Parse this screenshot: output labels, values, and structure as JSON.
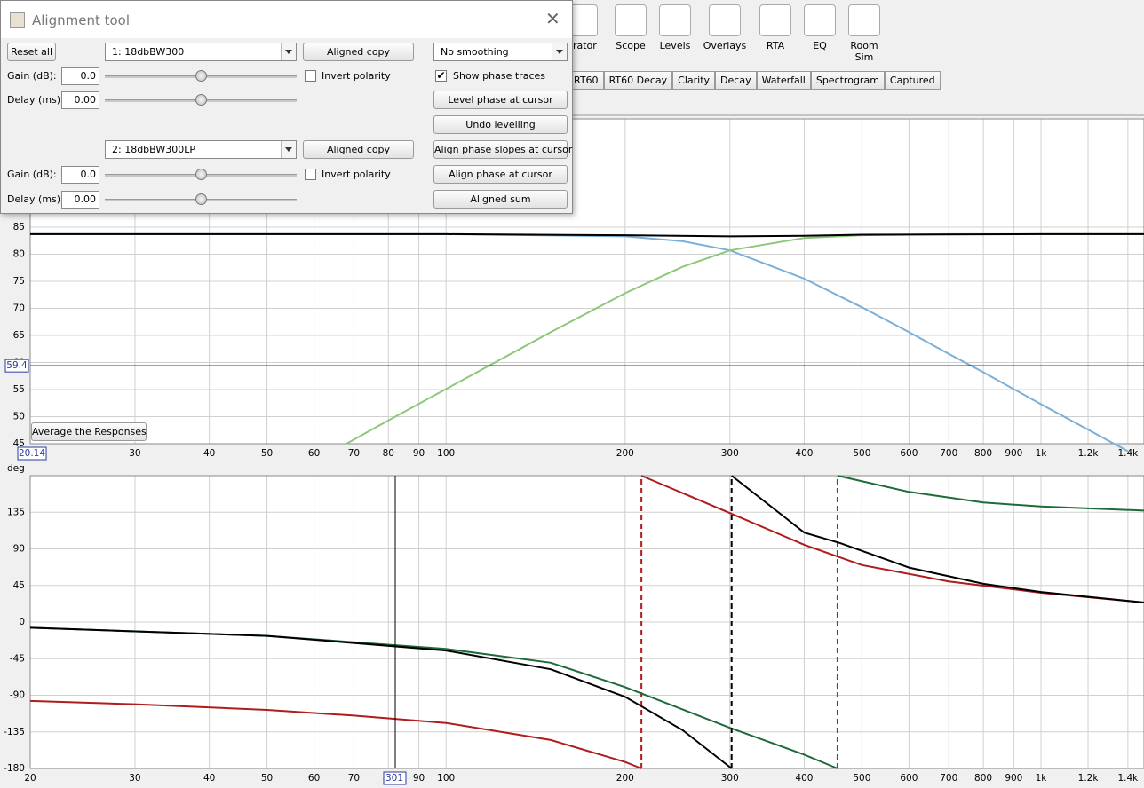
{
  "dialog": {
    "title": "Alignment tool",
    "reset_all": "Reset all",
    "smoothing": "No  smoothing",
    "show_phase_traces": "Show phase traces",
    "actions": [
      "Level phase at cursor",
      "Undo levelling",
      "Align phase slopes at cursor",
      "Align phase at cursor",
      "Aligned sum"
    ],
    "channels": [
      {
        "measurement": "1: 18dbBW300",
        "copy": "Aligned copy",
        "gain_label": "Gain (dB):",
        "gain": "0.0",
        "invert": "Invert polarity",
        "delay_label": "Delay (ms):",
        "delay": "0.00"
      },
      {
        "measurement": "2: 18dbBW300LP",
        "copy": "Aligned copy",
        "gain_label": "Gain (dB):",
        "gain": "0.0",
        "invert": "Invert polarity",
        "delay_label": "Delay (ms):",
        "delay": "0.00"
      }
    ]
  },
  "toolbar": [
    "erator",
    "Scope",
    "Levels",
    "Overlays",
    "RTA",
    "EQ",
    "Room Sim"
  ],
  "tabs": [
    "RT60",
    "RT60 Decay",
    "Clarity",
    "Decay",
    "Waterfall",
    "Spectrogram",
    "Captured"
  ],
  "average_button": "Average the Responses",
  "spl_graph": {
    "xlim": [
      20,
      1490
    ],
    "ylim": [
      45,
      105
    ],
    "log_x": true,
    "xticks": [
      30,
      40,
      50,
      60,
      70,
      80,
      90,
      100,
      200,
      300,
      400,
      500,
      600,
      700,
      800,
      900,
      {
        "value": 1000,
        "label": "1k"
      },
      {
        "value": 1200,
        "label": "1.2k"
      },
      {
        "value": 1400,
        "label": "1.4k"
      }
    ],
    "yticks": [
      45,
      50,
      55,
      60,
      65,
      70,
      75,
      80,
      85
    ],
    "cursor_y": 59.4,
    "cursor_x": 20.14,
    "series": [
      {
        "color": "#7ab0d8",
        "x": [
          20,
          100,
          200,
          250,
          300,
          400,
          500,
          600,
          700,
          800,
          1000,
          1200,
          1400
        ],
        "values": [
          83.7,
          83.7,
          83.3,
          82.4,
          80.7,
          75.5,
          70.2,
          65.6,
          61.6,
          58.2,
          52.3,
          47.6,
          43.6
        ]
      },
      {
        "color": "#8cc87a",
        "x": [
          68,
          80,
          100,
          150,
          200,
          250,
          300,
          400,
          500,
          700,
          1000,
          1490
        ],
        "values": [
          45,
          49.3,
          55.1,
          65.6,
          72.8,
          77.7,
          80.7,
          83,
          83.5,
          83.7,
          83.7,
          83.7
        ]
      },
      {
        "color": "#000000",
        "x": [
          20,
          100,
          200,
          300,
          400,
          500,
          1000,
          1490
        ],
        "values": [
          83.7,
          83.7,
          83.5,
          83.3,
          83.4,
          83.6,
          83.7,
          83.7
        ]
      }
    ]
  },
  "phase_graph": {
    "y_unit": "deg",
    "xlim": [
      20,
      1490
    ],
    "ylim": [
      -180,
      180
    ],
    "log_x": true,
    "xticks": [
      20,
      30,
      40,
      50,
      60,
      70,
      80,
      90,
      100,
      200,
      300,
      400,
      500,
      600,
      700,
      800,
      900,
      {
        "value": 1000,
        "label": "1k"
      },
      {
        "value": 1200,
        "label": "1.2k"
      },
      {
        "value": 1400,
        "label": "1.4k"
      }
    ],
    "yticks": [
      -180,
      -135,
      -90,
      -45,
      0,
      45,
      90,
      135
    ],
    "cursor_label": "301",
    "series": [
      {
        "color": "#b01c1c",
        "x": [
          20,
          30,
          50,
          70,
          100,
          150,
          200,
          213,
          null,
          213,
          300,
          400,
          500,
          700,
          1000,
          1490
        ],
        "values": [
          -97,
          -101,
          -108,
          -115,
          -124,
          -145,
          -172,
          -180,
          null,
          180,
          134,
          95,
          70,
          50,
          36,
          24
        ]
      },
      {
        "color": "#1e6b3a",
        "x": [
          20,
          50,
          100,
          150,
          200,
          300,
          400,
          455,
          null,
          455,
          600,
          800,
          1000,
          1490
        ],
        "values": [
          -7,
          -17,
          -33,
          -50,
          -80,
          -130,
          -163,
          -180,
          null,
          180,
          160,
          147,
          142,
          137
        ]
      },
      {
        "color": "#000000",
        "x": [
          20,
          50,
          100,
          150,
          200,
          250,
          302,
          null,
          302,
          400,
          460,
          600,
          800,
          1000,
          1490
        ],
        "values": [
          -7,
          -17,
          -35,
          -58,
          -92,
          -133,
          -180,
          null,
          180,
          110,
          97,
          67,
          47,
          37,
          24
        ]
      }
    ]
  }
}
